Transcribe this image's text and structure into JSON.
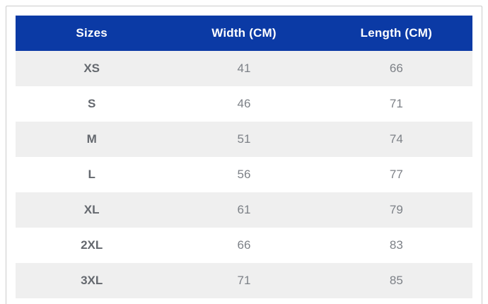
{
  "colors": {
    "header_bg": "#0b3aa5",
    "header_text": "#ffffff",
    "stripe_bg": "#efefef",
    "label_text": "#64686e",
    "value_text": "#7d8187",
    "card_border": "#cbcbcb"
  },
  "table": {
    "columns": [
      "Sizes",
      "Width (CM)",
      "Length (CM)"
    ],
    "rows": [
      {
        "size": "XS",
        "width": "41",
        "length": "66"
      },
      {
        "size": "S",
        "width": "46",
        "length": "71"
      },
      {
        "size": "M",
        "width": "51",
        "length": "74"
      },
      {
        "size": "L",
        "width": "56",
        "length": "77"
      },
      {
        "size": "XL",
        "width": "61",
        "length": "79"
      },
      {
        "size": "2XL",
        "width": "66",
        "length": "83"
      },
      {
        "size": "3XL",
        "width": "71",
        "length": "85"
      }
    ]
  },
  "chart_data": {
    "type": "table",
    "title": "",
    "columns": [
      "Sizes",
      "Width (CM)",
      "Length (CM)"
    ],
    "rows": [
      [
        "XS",
        41,
        66
      ],
      [
        "S",
        46,
        71
      ],
      [
        "M",
        51,
        74
      ],
      [
        "L",
        56,
        77
      ],
      [
        "XL",
        61,
        79
      ],
      [
        "2XL",
        66,
        83
      ],
      [
        "3XL",
        71,
        85
      ]
    ]
  }
}
